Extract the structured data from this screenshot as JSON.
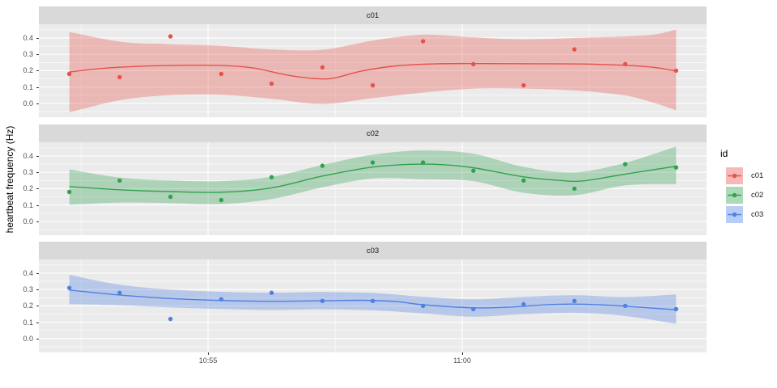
{
  "chart_data": {
    "type": "scatter",
    "description": "Faceted time-series scatter plot with loess smooth lines and confidence ribbons, one facet per id",
    "facets": [
      "c01",
      "c02",
      "c03"
    ],
    "legend": {
      "title": "id",
      "entries": [
        {
          "label": "c01",
          "color": "#E8514A"
        },
        {
          "label": "c02",
          "color": "#30A24E"
        },
        {
          "label": "c03",
          "color": "#4F80E4"
        }
      ]
    },
    "x_axis": {
      "unit": "minutes_after_10:50",
      "domain": [
        1.67,
        14.81
      ],
      "ticks": [
        {
          "value": 5,
          "label": "10:55"
        },
        {
          "value": 10,
          "label": "11:00"
        }
      ],
      "minor_ticks": [
        2.5,
        7.5,
        12.5
      ]
    },
    "y_axis": {
      "label": "heartbeat frequency (Hz)",
      "domain": [
        -0.085,
        0.484
      ],
      "tick_values": [
        0.0,
        0.1,
        0.2,
        0.3,
        0.4
      ],
      "ticks": [
        "0.0",
        "0.1",
        "0.2",
        "0.3",
        "0.4"
      ],
      "minor_tick_values": [
        -0.05,
        0.05,
        0.15,
        0.25,
        0.35,
        0.45
      ]
    },
    "x_minutes_after_1050": [
      2.27,
      3.26,
      4.26,
      5.26,
      6.25,
      7.25,
      8.24,
      9.23,
      10.22,
      11.21,
      12.21,
      13.21,
      14.21
    ],
    "series": [
      {
        "id": "c01",
        "color": "#E8514A",
        "ribbon_opacity": 0.33,
        "points": [
          0.18,
          0.16,
          0.41,
          0.18,
          0.12,
          0.22,
          0.11,
          0.38,
          0.24,
          0.11,
          0.33,
          0.24,
          0.2
        ],
        "smooth_line": [
          [
            2.27,
            0.192
          ],
          [
            3.0,
            0.216
          ],
          [
            3.8,
            0.228
          ],
          [
            4.6,
            0.233
          ],
          [
            5.3,
            0.231
          ],
          [
            5.9,
            0.216
          ],
          [
            6.5,
            0.176
          ],
          [
            7.0,
            0.154
          ],
          [
            7.45,
            0.153
          ],
          [
            8.0,
            0.196
          ],
          [
            8.7,
            0.229
          ],
          [
            9.5,
            0.242
          ],
          [
            10.5,
            0.243
          ],
          [
            11.5,
            0.242
          ],
          [
            12.5,
            0.24
          ],
          [
            13.3,
            0.231
          ],
          [
            13.8,
            0.219
          ],
          [
            14.21,
            0.197
          ]
        ],
        "ribbon": [
          [
            2.27,
            0.437,
            -0.055
          ],
          [
            3.3,
            0.376,
            0.021
          ],
          [
            4.26,
            0.362,
            0.05
          ],
          [
            5.26,
            0.352,
            0.052
          ],
          [
            6.25,
            0.33,
            0.028
          ],
          [
            7.25,
            0.328,
            -0.004
          ],
          [
            8.24,
            0.384,
            0.032
          ],
          [
            9.23,
            0.42,
            0.066
          ],
          [
            10.22,
            0.404,
            0.09
          ],
          [
            11.21,
            0.392,
            0.09
          ],
          [
            12.21,
            0.4,
            0.079
          ],
          [
            13.21,
            0.41,
            0.048
          ],
          [
            13.8,
            0.422,
            0.0
          ],
          [
            14.21,
            0.452,
            -0.043
          ]
        ]
      },
      {
        "id": "c02",
        "color": "#30A24E",
        "ribbon_opacity": 0.33,
        "points": [
          0.18,
          0.25,
          0.15,
          0.13,
          0.27,
          0.34,
          0.36,
          0.36,
          0.31,
          0.25,
          0.2,
          0.35,
          0.33
        ],
        "smooth_line": [
          [
            2.27,
            0.213
          ],
          [
            3.27,
            0.193
          ],
          [
            4.26,
            0.182
          ],
          [
            5.26,
            0.178
          ],
          [
            6.25,
            0.205
          ],
          [
            7.25,
            0.277
          ],
          [
            8.24,
            0.332
          ],
          [
            9.0,
            0.349
          ],
          [
            9.6,
            0.347
          ],
          [
            10.22,
            0.328
          ],
          [
            11.21,
            0.272
          ],
          [
            11.9,
            0.251
          ],
          [
            12.4,
            0.248
          ],
          [
            13.21,
            0.289
          ],
          [
            14.21,
            0.337
          ]
        ],
        "ribbon": [
          [
            2.27,
            0.318,
            0.102
          ],
          [
            3.27,
            0.268,
            0.115
          ],
          [
            4.26,
            0.25,
            0.112
          ],
          [
            5.26,
            0.246,
            0.106
          ],
          [
            6.25,
            0.272,
            0.136
          ],
          [
            7.25,
            0.345,
            0.208
          ],
          [
            8.24,
            0.408,
            0.262
          ],
          [
            9.23,
            0.434,
            0.258
          ],
          [
            10.22,
            0.414,
            0.246
          ],
          [
            11.21,
            0.333,
            0.175
          ],
          [
            12.21,
            0.3,
            0.16
          ],
          [
            13.21,
            0.358,
            0.22
          ],
          [
            14.21,
            0.458,
            0.228
          ]
        ]
      },
      {
        "id": "c03",
        "color": "#4F80E4",
        "ribbon_opacity": 0.33,
        "points": [
          0.31,
          0.28,
          0.12,
          0.24,
          0.28,
          0.23,
          0.23,
          0.2,
          0.18,
          0.21,
          0.23,
          0.2,
          0.18
        ],
        "smooth_line": [
          [
            2.27,
            0.297
          ],
          [
            3.27,
            0.266
          ],
          [
            4.26,
            0.245
          ],
          [
            5.26,
            0.233
          ],
          [
            6.25,
            0.228
          ],
          [
            7.25,
            0.231
          ],
          [
            8.0,
            0.234
          ],
          [
            8.7,
            0.226
          ],
          [
            9.23,
            0.207
          ],
          [
            10.22,
            0.188
          ],
          [
            10.9,
            0.192
          ],
          [
            11.6,
            0.206
          ],
          [
            12.21,
            0.211
          ],
          [
            12.9,
            0.204
          ],
          [
            13.21,
            0.198
          ],
          [
            14.21,
            0.176
          ]
        ],
        "ribbon": [
          [
            2.27,
            0.39,
            0.21
          ],
          [
            3.27,
            0.329,
            0.204
          ],
          [
            4.26,
            0.3,
            0.19
          ],
          [
            5.26,
            0.286,
            0.181
          ],
          [
            6.25,
            0.281,
            0.175
          ],
          [
            7.25,
            0.285,
            0.179
          ],
          [
            8.24,
            0.279,
            0.173
          ],
          [
            9.23,
            0.256,
            0.154
          ],
          [
            10.22,
            0.24,
            0.134
          ],
          [
            11.21,
            0.255,
            0.149
          ],
          [
            12.21,
            0.265,
            0.158
          ],
          [
            13.21,
            0.254,
            0.138
          ],
          [
            14.21,
            0.27,
            0.09
          ]
        ]
      }
    ],
    "style": {
      "background": "#FFFFFF",
      "panel_bg": "#EBEBEB",
      "strip_bg": "#D9D9D9",
      "strip_text": "#1A1A1A",
      "grid": "#FFFFFF",
      "tick_text": "#4D4D4D",
      "tick_mark": "#333333"
    }
  }
}
